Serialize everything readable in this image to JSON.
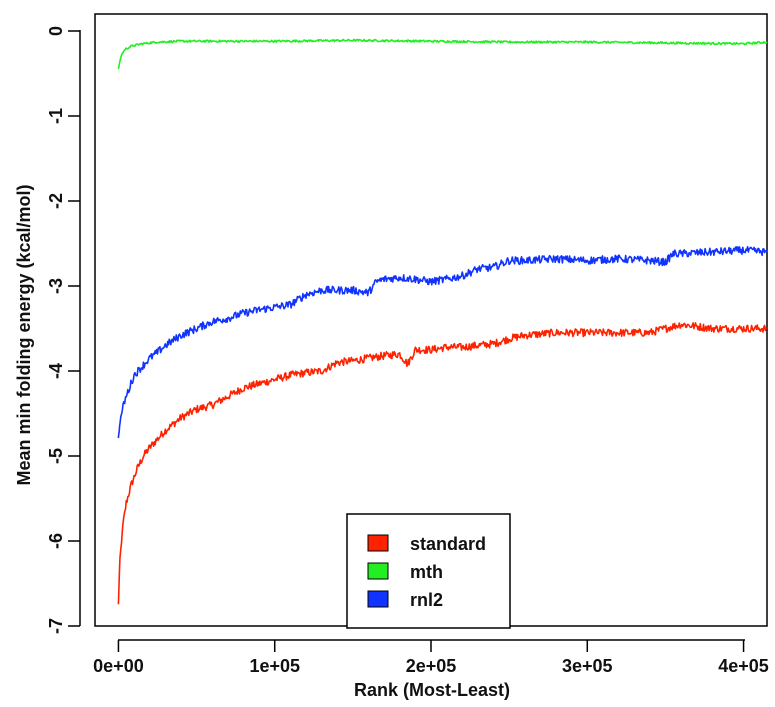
{
  "chart_data": {
    "type": "line",
    "title": "",
    "xlabel": "Rank (Most-Least)",
    "ylabel": "Mean min folding energy (kcal/mol)",
    "xlim": [
      -15000,
      415000
    ],
    "ylim": [
      -7,
      0.2
    ],
    "x_ticks": [
      0,
      100000,
      200000,
      300000,
      400000
    ],
    "x_tick_labels": [
      "0e+00",
      "1e+05",
      "2e+05",
      "3e+05",
      "4e+05"
    ],
    "y_ticks": [
      0,
      -1,
      -2,
      -3,
      -4,
      -5,
      -6,
      -7
    ],
    "y_tick_labels": [
      "0",
      "-1",
      "-2",
      "-3",
      "-4",
      "-5",
      "-6",
      "-7"
    ],
    "grid": false,
    "legend_position": "bottom-center",
    "series": [
      {
        "name": "standard",
        "color": "#ff2200",
        "x": [
          0,
          500,
          1000,
          2000,
          3000,
          5000,
          8000,
          12000,
          16000,
          20000,
          25000,
          30000,
          40000,
          50000,
          60000,
          70000,
          80000,
          90000,
          100000,
          110000,
          120000,
          130000,
          140000,
          150000,
          160000,
          170000,
          180000,
          185000,
          190000,
          200000,
          210000,
          220000,
          230000,
          240000,
          250000,
          260000,
          280000,
          300000,
          320000,
          340000,
          360000,
          380000,
          400000,
          415000
        ],
        "y": [
          -6.75,
          -6.45,
          -6.2,
          -6.0,
          -5.8,
          -5.55,
          -5.35,
          -5.15,
          -5.0,
          -4.9,
          -4.8,
          -4.7,
          -4.55,
          -4.45,
          -4.4,
          -4.3,
          -4.2,
          -4.15,
          -4.1,
          -4.05,
          -4.02,
          -4.0,
          -3.9,
          -3.88,
          -3.85,
          -3.82,
          -3.8,
          -3.92,
          -3.75,
          -3.75,
          -3.72,
          -3.72,
          -3.7,
          -3.68,
          -3.62,
          -3.58,
          -3.55,
          -3.55,
          -3.55,
          -3.55,
          -3.45,
          -3.5,
          -3.5,
          -3.5
        ]
      },
      {
        "name": "mth",
        "color": "#22ee22",
        "x": [
          0,
          1000,
          2000,
          4000,
          8000,
          15000,
          25000,
          40000,
          60000,
          100000,
          150000,
          200000,
          250000,
          300000,
          350000,
          400000,
          415000
        ],
        "y": [
          -0.45,
          -0.35,
          -0.28,
          -0.22,
          -0.18,
          -0.15,
          -0.13,
          -0.12,
          -0.12,
          -0.12,
          -0.11,
          -0.12,
          -0.13,
          -0.13,
          -0.14,
          -0.15,
          -0.13
        ]
      },
      {
        "name": "rnl2",
        "color": "#1133ff",
        "x": [
          0,
          500,
          1000,
          2000,
          4000,
          7000,
          10000,
          15000,
          20000,
          25000,
          30000,
          40000,
          50000,
          60000,
          70000,
          80000,
          90000,
          100000,
          110000,
          120000,
          130000,
          140000,
          150000,
          160000,
          165000,
          170000,
          180000,
          190000,
          200000,
          210000,
          220000,
          230000,
          240000,
          250000,
          260000,
          280000,
          300000,
          320000,
          340000,
          350000,
          355000,
          360000,
          380000,
          400000,
          415000
        ],
        "y": [
          -4.8,
          -4.7,
          -4.6,
          -4.5,
          -4.35,
          -4.2,
          -4.05,
          -3.95,
          -3.85,
          -3.78,
          -3.7,
          -3.58,
          -3.5,
          -3.42,
          -3.38,
          -3.32,
          -3.28,
          -3.25,
          -3.22,
          -3.1,
          -3.05,
          -3.05,
          -3.05,
          -3.08,
          -2.95,
          -2.92,
          -2.9,
          -2.92,
          -2.95,
          -2.92,
          -2.88,
          -2.8,
          -2.78,
          -2.7,
          -2.7,
          -2.68,
          -2.7,
          -2.68,
          -2.7,
          -2.72,
          -2.62,
          -2.62,
          -2.6,
          -2.58,
          -2.6
        ]
      }
    ]
  }
}
